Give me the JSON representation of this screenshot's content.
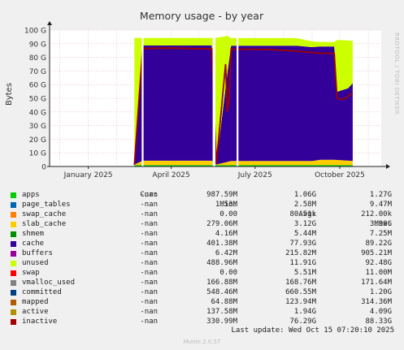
{
  "colors": {
    "background": "#f0f0f0",
    "plot_bg": "#ffffff",
    "grid": "#e2a9a9",
    "axis": "#222222"
  },
  "side_text": "RRDTOOL / TOBI OETIKER",
  "footer": {
    "last_update": "Last update: Wed Oct 15 07:20:10 2025",
    "version": "Munin 2.0.57"
  },
  "legend": {
    "headers": [
      "Cur:",
      "Min:",
      "Avg:",
      "Max:"
    ],
    "rows": [
      {
        "name": "apps",
        "color": "#00cc00",
        "cur": "-nan",
        "min": "987.59M",
        "avg": "1.06G",
        "max": "1.27G"
      },
      {
        "name": "page_tables",
        "color": "#0066b3",
        "cur": "-nan",
        "min": "1.53M",
        "avg": "2.58M",
        "max": "9.47M"
      },
      {
        "name": "swap_cache",
        "color": "#ff8000",
        "cur": "-nan",
        "min": "0.00",
        "avg": "80.51k",
        "max": "212.00k"
      },
      {
        "name": "slab_cache",
        "color": "#ffcc00",
        "cur": "-nan",
        "min": "279.06M",
        "avg": "3.12G",
        "max": "3.90G"
      },
      {
        "name": "shmem",
        "color": "#008f00",
        "cur": "-nan",
        "min": "4.16M",
        "avg": "5.44M",
        "max": "7.25M"
      },
      {
        "name": "cache",
        "color": "#330099",
        "cur": "-nan",
        "min": "401.38M",
        "avg": "77.93G",
        "max": "89.22G"
      },
      {
        "name": "buffers",
        "color": "#990099",
        "cur": "-nan",
        "min": "6.42M",
        "avg": "215.82M",
        "max": "905.21M"
      },
      {
        "name": "unused",
        "color": "#ccff00",
        "cur": "-nan",
        "min": "488.96M",
        "avg": "11.91G",
        "max": "92.48G"
      },
      {
        "name": "swap",
        "color": "#ff0000",
        "cur": "-nan",
        "min": "0.00",
        "avg": "5.51M",
        "max": "11.00M"
      },
      {
        "name": "vmalloc_used",
        "color": "#808080",
        "cur": "-nan",
        "min": "166.88M",
        "avg": "168.76M",
        "max": "171.64M"
      },
      {
        "name": "committed",
        "color": "#004080",
        "cur": "-nan",
        "min": "548.46M",
        "avg": "660.55M",
        "max": "1.20G"
      },
      {
        "name": "mapped",
        "color": "#b35a00",
        "cur": "-nan",
        "min": "64.88M",
        "avg": "123.94M",
        "max": "314.36M"
      },
      {
        "name": "active",
        "color": "#b38f00",
        "cur": "-nan",
        "min": "137.58M",
        "avg": "1.94G",
        "max": "4.09G"
      },
      {
        "name": "inactive",
        "color": "#a00000",
        "cur": "-nan",
        "min": "330.99M",
        "avg": "76.29G",
        "max": "88.33G"
      }
    ]
  },
  "chart_data": {
    "type": "area",
    "title": "Memory usage - by year",
    "ylabel": "Bytes",
    "y_unit": "G",
    "ylim": [
      0,
      100
    ],
    "y_ticks": [
      0,
      10,
      20,
      30,
      40,
      50,
      60,
      70,
      80,
      90,
      100
    ],
    "y_tick_labels": [
      "0",
      "10 G",
      "20 G",
      "30 G",
      "40 G",
      "50 G",
      "60 G",
      "70 G",
      "80 G",
      "90 G",
      "100 G"
    ],
    "xlim": [
      "2024-11-20",
      "2025-11-15"
    ],
    "x_tick_labels": [
      {
        "date": "2025-01-01",
        "label": "January 2025"
      },
      {
        "date": "2025-04-01",
        "label": "April 2025"
      },
      {
        "date": "2025-07-01",
        "label": "July 2025"
      },
      {
        "date": "2025-10-01",
        "label": "October 2025"
      }
    ],
    "grid": true,
    "legend_position": "bottom",
    "series": [
      {
        "name": "apps",
        "color": "#00cc00",
        "stack": true,
        "points": [
          [
            "2025-02-20",
            1.0
          ],
          [
            "2025-10-15",
            1.0
          ]
        ]
      },
      {
        "name": "slab_cache",
        "color": "#ffcc00",
        "stack": true,
        "points": [
          [
            "2025-02-20",
            0.4
          ],
          [
            "2025-03-01",
            3.2
          ],
          [
            "2025-05-15",
            3.2
          ],
          [
            "2025-05-20",
            0.4
          ],
          [
            "2025-06-05",
            3.0
          ],
          [
            "2025-09-01",
            3.0
          ],
          [
            "2025-09-10",
            3.9
          ],
          [
            "2025-09-25",
            3.9
          ],
          [
            "2025-10-15",
            3.1
          ]
        ]
      },
      {
        "name": "cache",
        "color": "#330099",
        "stack": true,
        "points": [
          [
            "2025-02-20",
            0.4
          ],
          [
            "2025-03-01",
            84.5
          ],
          [
            "2025-05-15",
            84.5
          ],
          [
            "2025-05-20",
            0.4
          ],
          [
            "2025-06-01",
            65
          ],
          [
            "2025-06-05",
            84.5
          ],
          [
            "2025-08-15",
            84.5
          ],
          [
            "2025-09-10",
            83
          ],
          [
            "2025-09-25",
            83
          ],
          [
            "2025-09-28",
            50
          ],
          [
            "2025-10-10",
            53
          ],
          [
            "2025-10-15",
            57
          ]
        ]
      },
      {
        "name": "unused",
        "color": "#ccff00",
        "stack": true,
        "points": [
          [
            "2025-02-20",
            92.5
          ],
          [
            "2025-03-01",
            5.5
          ],
          [
            "2025-05-15",
            5.5
          ],
          [
            "2025-05-20",
            92.5
          ],
          [
            "2025-06-05",
            5.6
          ],
          [
            "2025-08-15",
            5.6
          ],
          [
            "2025-09-10",
            3.4
          ],
          [
            "2025-09-25",
            3.3
          ],
          [
            "2025-09-28",
            38
          ],
          [
            "2025-10-10",
            35
          ],
          [
            "2025-10-15",
            31
          ]
        ]
      },
      {
        "name": "inactive",
        "color": "#a00000",
        "stack": false,
        "points": [
          [
            "2025-02-20",
            1.2
          ],
          [
            "2025-03-01",
            86.5
          ],
          [
            "2025-04-01",
            86.8
          ],
          [
            "2025-05-15",
            86.2
          ],
          [
            "2025-05-20",
            2.0
          ],
          [
            "2025-05-30",
            75
          ],
          [
            "2025-06-01",
            40
          ],
          [
            "2025-06-03",
            50
          ],
          [
            "2025-06-05",
            86.0
          ],
          [
            "2025-07-15",
            85.8
          ],
          [
            "2025-08-15",
            84.5
          ],
          [
            "2025-09-10",
            83.0
          ],
          [
            "2025-09-25",
            83.0
          ],
          [
            "2025-09-28",
            50
          ],
          [
            "2025-10-05",
            49
          ],
          [
            "2025-10-15",
            54
          ]
        ]
      }
    ],
    "gaps": [
      {
        "from": "2025-02-28",
        "to": "2025-03-02"
      },
      {
        "from": "2025-05-16",
        "to": "2025-05-19"
      },
      {
        "from": "2025-06-11",
        "to": "2025-06-13"
      }
    ]
  }
}
